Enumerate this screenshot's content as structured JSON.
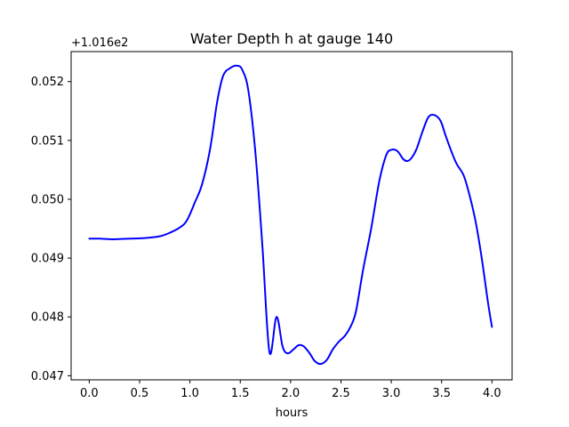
{
  "chart_data": {
    "type": "line",
    "title": "Water Depth h at gauge 140",
    "xlabel": "hours",
    "ylabel": "",
    "y_offset_label": "+1.016e2",
    "xlim": [
      -0.18,
      4.2
    ],
    "ylim": [
      0.04693,
      0.05251
    ],
    "x_ticks": [
      0.0,
      0.5,
      1.0,
      1.5,
      2.0,
      2.5,
      3.0,
      3.5,
      4.0
    ],
    "x_tick_labels": [
      "0.0",
      "0.5",
      "1.0",
      "1.5",
      "2.0",
      "2.5",
      "3.0",
      "3.5",
      "4.0"
    ],
    "y_ticks": [
      0.047,
      0.048,
      0.049,
      0.05,
      0.051,
      0.052
    ],
    "y_tick_labels": [
      "0.047",
      "0.048",
      "0.049",
      "0.050",
      "0.051",
      "0.052"
    ],
    "grid": false,
    "series": [
      {
        "color": "#0000ff",
        "x": [
          0.0,
          0.1,
          0.25,
          0.4,
          0.55,
          0.7,
          0.8,
          0.9,
          0.97,
          1.05,
          1.12,
          1.2,
          1.27,
          1.33,
          1.4,
          1.47,
          1.52,
          1.58,
          1.65,
          1.72,
          1.79,
          1.86,
          1.92,
          1.97,
          2.03,
          2.08,
          2.13,
          2.19,
          2.24,
          2.3,
          2.36,
          2.42,
          2.48,
          2.54,
          2.6,
          2.65,
          2.72,
          2.8,
          2.88,
          2.95,
          3.0,
          3.06,
          3.12,
          3.16,
          3.2,
          3.25,
          3.31,
          3.37,
          3.43,
          3.49,
          3.54,
          3.6,
          3.65,
          3.72,
          3.78,
          3.84,
          3.9,
          3.96,
          4.0
        ],
        "y": [
          0.04933,
          0.04933,
          0.04932,
          0.04933,
          0.04934,
          0.04937,
          0.04943,
          0.04952,
          0.04964,
          0.04995,
          0.05025,
          0.05085,
          0.05165,
          0.0521,
          0.05223,
          0.05227,
          0.0522,
          0.05185,
          0.0508,
          0.0492,
          0.0474,
          0.048,
          0.0475,
          0.04738,
          0.04745,
          0.04752,
          0.0475,
          0.04738,
          0.04725,
          0.0472,
          0.04727,
          0.04745,
          0.04758,
          0.04768,
          0.04785,
          0.0481,
          0.0488,
          0.0495,
          0.0503,
          0.05075,
          0.05084,
          0.05082,
          0.05068,
          0.05065,
          0.0507,
          0.05085,
          0.05115,
          0.0514,
          0.05143,
          0.05133,
          0.05108,
          0.0508,
          0.0506,
          0.0504,
          0.05005,
          0.0496,
          0.04898,
          0.04825,
          0.04783
        ]
      }
    ]
  }
}
